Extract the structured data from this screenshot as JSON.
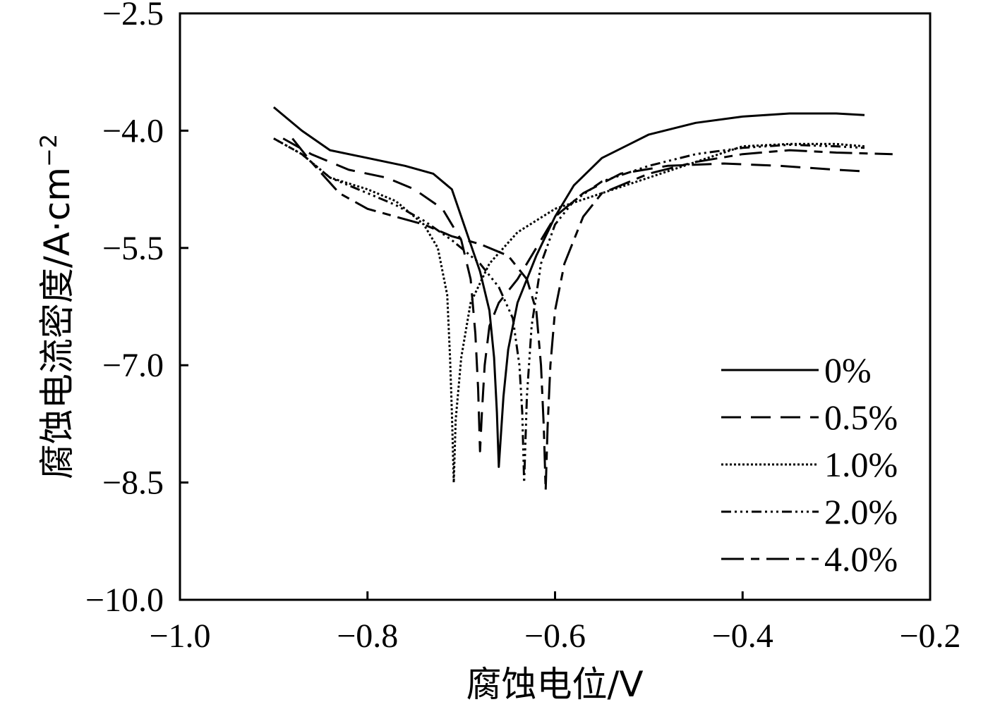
{
  "chart_data": {
    "type": "line",
    "xlabel": "腐蚀电位/V",
    "ylabel": "腐蚀电流密度/A·cm",
    "ylabel_sup": "−2",
    "xlim": [
      -1.0,
      -0.2
    ],
    "ylim": [
      -10.0,
      -2.5
    ],
    "x_ticks": [
      -1.0,
      -0.8,
      -0.6,
      -0.4,
      -0.2
    ],
    "x_tick_labels": [
      "−1.0",
      "−0.8",
      "−0.6",
      "−0.4",
      "−0.2"
    ],
    "y_ticks": [
      -2.5,
      -4.0,
      -5.5,
      -7.0,
      -8.5,
      -10.0
    ],
    "y_tick_labels": [
      "−2.5",
      "−4.0",
      "−5.5",
      "−7.0",
      "−8.5",
      "−10.0"
    ],
    "grid": false,
    "legend_position": "bottom-right",
    "series": [
      {
        "name": "0%",
        "dash": "",
        "x": [
          -0.9,
          -0.87,
          -0.84,
          -0.8,
          -0.76,
          -0.73,
          -0.71,
          -0.7,
          -0.69,
          -0.68,
          -0.67,
          -0.665,
          -0.662,
          -0.66,
          -0.655,
          -0.65,
          -0.64,
          -0.62,
          -0.6,
          -0.58,
          -0.55,
          -0.5,
          -0.45,
          -0.4,
          -0.35,
          -0.3,
          -0.27
        ],
        "y": [
          -3.7,
          -4.0,
          -4.25,
          -4.35,
          -4.45,
          -4.55,
          -4.75,
          -5.1,
          -5.45,
          -5.8,
          -6.3,
          -6.9,
          -7.6,
          -8.3,
          -7.4,
          -6.8,
          -6.2,
          -5.6,
          -5.1,
          -4.7,
          -4.35,
          -4.05,
          -3.9,
          -3.82,
          -3.78,
          -3.78,
          -3.8
        ]
      },
      {
        "name": "0.5%",
        "dash": "28,14",
        "x": [
          -0.89,
          -0.86,
          -0.82,
          -0.78,
          -0.75,
          -0.72,
          -0.7,
          -0.69,
          -0.685,
          -0.682,
          -0.68,
          -0.678,
          -0.675,
          -0.67,
          -0.66,
          -0.64,
          -0.62,
          -0.6,
          -0.57,
          -0.53,
          -0.48,
          -0.42,
          -0.36,
          -0.3,
          -0.27
        ],
        "y": [
          -4.1,
          -4.3,
          -4.5,
          -4.6,
          -4.75,
          -5.0,
          -5.4,
          -5.9,
          -6.6,
          -7.3,
          -8.1,
          -7.6,
          -7.0,
          -6.5,
          -6.2,
          -5.9,
          -5.5,
          -5.1,
          -4.8,
          -4.55,
          -4.45,
          -4.42,
          -4.45,
          -4.5,
          -4.52
        ]
      },
      {
        "name": "1.0%",
        "dash": "3,3",
        "x": [
          -0.9,
          -0.87,
          -0.84,
          -0.8,
          -0.77,
          -0.74,
          -0.725,
          -0.715,
          -0.712,
          -0.71,
          -0.708,
          -0.706,
          -0.7,
          -0.69,
          -0.67,
          -0.64,
          -0.6,
          -0.55,
          -0.5,
          -0.45,
          -0.4,
          -0.35,
          -0.3,
          -0.27
        ],
        "y": [
          -4.1,
          -4.3,
          -4.6,
          -4.75,
          -4.9,
          -5.2,
          -5.5,
          -6.1,
          -6.9,
          -7.6,
          -8.5,
          -7.7,
          -6.9,
          -6.2,
          -5.7,
          -5.3,
          -5.0,
          -4.8,
          -4.6,
          -4.4,
          -4.2,
          -4.17,
          -4.17,
          -4.2
        ]
      },
      {
        "name": "2.0%",
        "dash": "14,5,3,5,3,5,3,5",
        "x": [
          -0.9,
          -0.87,
          -0.84,
          -0.8,
          -0.77,
          -0.74,
          -0.71,
          -0.68,
          -0.66,
          -0.645,
          -0.638,
          -0.635,
          -0.633,
          -0.63,
          -0.625,
          -0.615,
          -0.6,
          -0.58,
          -0.55,
          -0.5,
          -0.45,
          -0.4,
          -0.35,
          -0.3,
          -0.27
        ],
        "y": [
          -4.1,
          -4.3,
          -4.6,
          -4.8,
          -4.95,
          -5.15,
          -5.4,
          -5.7,
          -6.0,
          -6.4,
          -7.0,
          -7.6,
          -8.5,
          -7.4,
          -6.5,
          -5.7,
          -5.2,
          -4.9,
          -4.65,
          -4.45,
          -4.3,
          -4.22,
          -4.18,
          -4.2,
          -4.22
        ]
      },
      {
        "name": "4.0%",
        "dash": "32,10,12,10",
        "x": [
          -0.88,
          -0.86,
          -0.83,
          -0.8,
          -0.77,
          -0.74,
          -0.71,
          -0.68,
          -0.65,
          -0.63,
          -0.62,
          -0.615,
          -0.612,
          -0.61,
          -0.608,
          -0.605,
          -0.6,
          -0.59,
          -0.57,
          -0.55,
          -0.5,
          -0.45,
          -0.4,
          -0.35,
          -0.3,
          -0.24
        ],
        "y": [
          -4.1,
          -4.4,
          -4.8,
          -5.0,
          -5.1,
          -5.2,
          -5.35,
          -5.45,
          -5.6,
          -5.9,
          -6.3,
          -7.0,
          -7.8,
          -8.6,
          -7.8,
          -7.0,
          -6.3,
          -5.7,
          -5.1,
          -4.8,
          -4.55,
          -4.4,
          -4.3,
          -4.25,
          -4.28,
          -4.3
        ]
      }
    ]
  }
}
